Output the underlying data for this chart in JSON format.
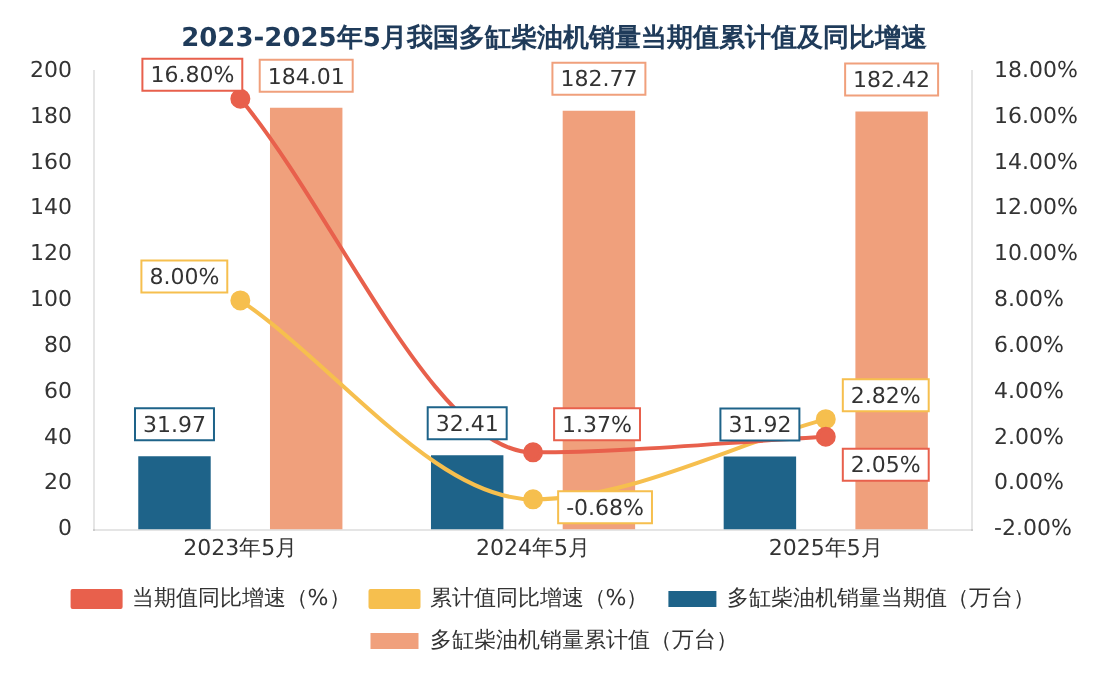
{
  "chart_data": {
    "type": "bar",
    "title": "2023-2025年5月我国多缸柴油机销量当期值累计值及同比增速",
    "categories": [
      "2023年5月",
      "2024年5月",
      "2025年5月"
    ],
    "series": [
      {
        "name": "多缸柴油机销量当期值（万台）",
        "color": "#1e6389",
        "values": [
          31.97,
          32.41,
          31.92
        ],
        "value_labels": [
          "31.97",
          "32.41",
          "31.92"
        ]
      },
      {
        "name": "多缸柴油机销量累计值（万台）",
        "color": "#f0a07c",
        "values": [
          184.01,
          182.77,
          182.42
        ],
        "value_labels": [
          "184.01",
          "182.77",
          "182.42"
        ]
      },
      {
        "name": "当期值同比增速（%）",
        "type": "line",
        "axis": "y2",
        "color": "#e8604c",
        "values": [
          16.8,
          1.37,
          2.05
        ],
        "value_labels": [
          "16.80%",
          "1.37%",
          "2.05%"
        ]
      },
      {
        "name": "累计值同比增速（%）",
        "type": "line",
        "axis": "y2",
        "color": "#f6bf4e",
        "values": [
          8.0,
          -0.68,
          2.82
        ],
        "value_labels": [
          "8.00%",
          "-0.68%",
          "2.82%"
        ]
      }
    ],
    "ylim": [
      0,
      200
    ],
    "yticks": [
      0,
      20,
      40,
      60,
      80,
      100,
      120,
      140,
      160,
      180,
      200
    ],
    "y2lim": [
      -2,
      18
    ],
    "y2ticks": [
      {
        "value": -2,
        "label": "-2.00%"
      },
      {
        "value": 0,
        "label": "0.00%"
      },
      {
        "value": 2,
        "label": "2.00%"
      },
      {
        "value": 4,
        "label": "4.00%"
      },
      {
        "value": 6,
        "label": "6.00%"
      },
      {
        "value": 8,
        "label": "8.00%"
      },
      {
        "value": 10,
        "label": "10.00%"
      },
      {
        "value": 12,
        "label": "12.00%"
      },
      {
        "value": 14,
        "label": "14.00%"
      },
      {
        "value": 16,
        "label": "16.00%"
      },
      {
        "value": 18,
        "label": "18.00%"
      }
    ],
    "grid": false,
    "legend": "bottom",
    "marker": "circle"
  }
}
